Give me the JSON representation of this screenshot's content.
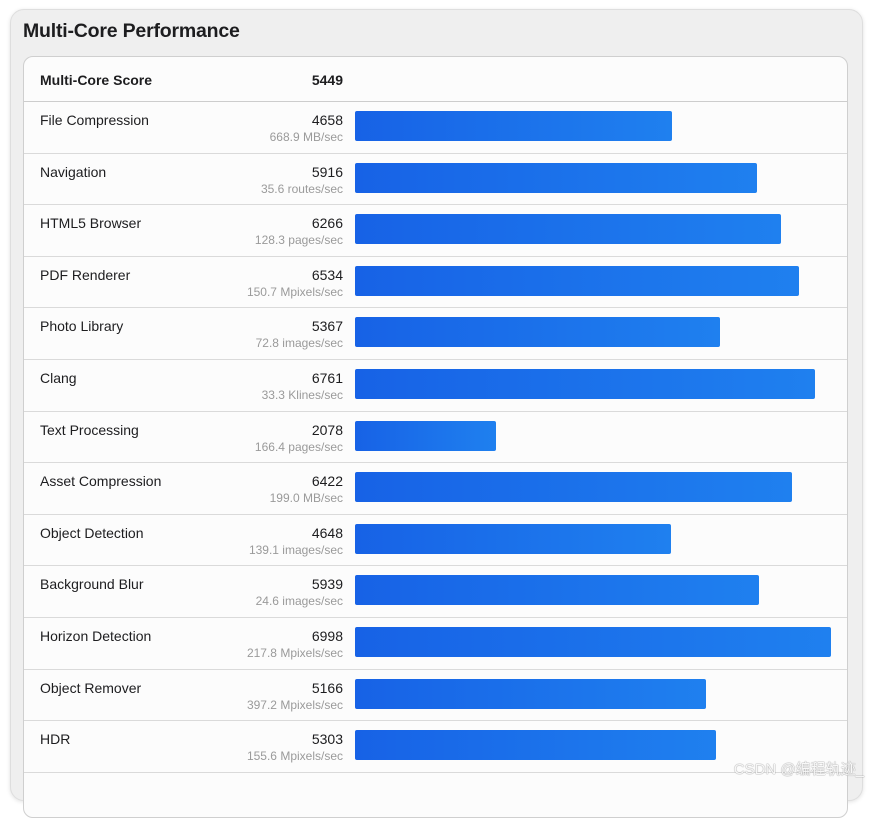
{
  "title": "Multi-Core Performance",
  "watermark": "CSDN @编程轨迹_",
  "bar_color_start": "#1762e6",
  "bar_color_end": "#1f80ef",
  "chart_data": {
    "type": "bar",
    "orientation": "horizontal",
    "title": "Multi-Core Performance",
    "summary": {
      "label": "Multi-Core Score",
      "value": 5449
    },
    "xlim": [
      0,
      7000
    ],
    "categories": [
      "File Compression",
      "Navigation",
      "HTML5 Browser",
      "PDF Renderer",
      "Photo Library",
      "Clang",
      "Text Processing",
      "Asset Compression",
      "Object Detection",
      "Background Blur",
      "Horizon Detection",
      "Object Remover",
      "HDR"
    ],
    "values": [
      4658,
      5916,
      6266,
      6534,
      5367,
      6761,
      2078,
      6422,
      4648,
      5939,
      6998,
      5166,
      5303
    ],
    "rows": [
      {
        "name": "File Compression",
        "score": "4658",
        "value": 4658,
        "unit": "668.9 MB/sec"
      },
      {
        "name": "Navigation",
        "score": "5916",
        "value": 5916,
        "unit": "35.6 routes/sec"
      },
      {
        "name": "HTML5 Browser",
        "score": "6266",
        "value": 6266,
        "unit": "128.3 pages/sec"
      },
      {
        "name": "PDF Renderer",
        "score": "6534",
        "value": 6534,
        "unit": "150.7 Mpixels/sec"
      },
      {
        "name": "Photo Library",
        "score": "5367",
        "value": 5367,
        "unit": "72.8 images/sec"
      },
      {
        "name": "Clang",
        "score": "6761",
        "value": 6761,
        "unit": "33.3 Klines/sec"
      },
      {
        "name": "Text Processing",
        "score": "2078",
        "value": 2078,
        "unit": "166.4 pages/sec"
      },
      {
        "name": "Asset Compression",
        "score": "6422",
        "value": 6422,
        "unit": "199.0 MB/sec"
      },
      {
        "name": "Object Detection",
        "score": "4648",
        "value": 4648,
        "unit": "139.1 images/sec"
      },
      {
        "name": "Background Blur",
        "score": "5939",
        "value": 5939,
        "unit": "24.6 images/sec"
      },
      {
        "name": "Horizon Detection",
        "score": "6998",
        "value": 6998,
        "unit": "217.8 Mpixels/sec"
      },
      {
        "name": "Object Remover",
        "score": "5166",
        "value": 5166,
        "unit": "397.2 Mpixels/sec"
      },
      {
        "name": "HDR",
        "score": "5303",
        "value": 5303,
        "unit": "155.6 Mpixels/sec"
      }
    ]
  },
  "header": {
    "label": "Multi-Core Score",
    "score": "5449"
  }
}
